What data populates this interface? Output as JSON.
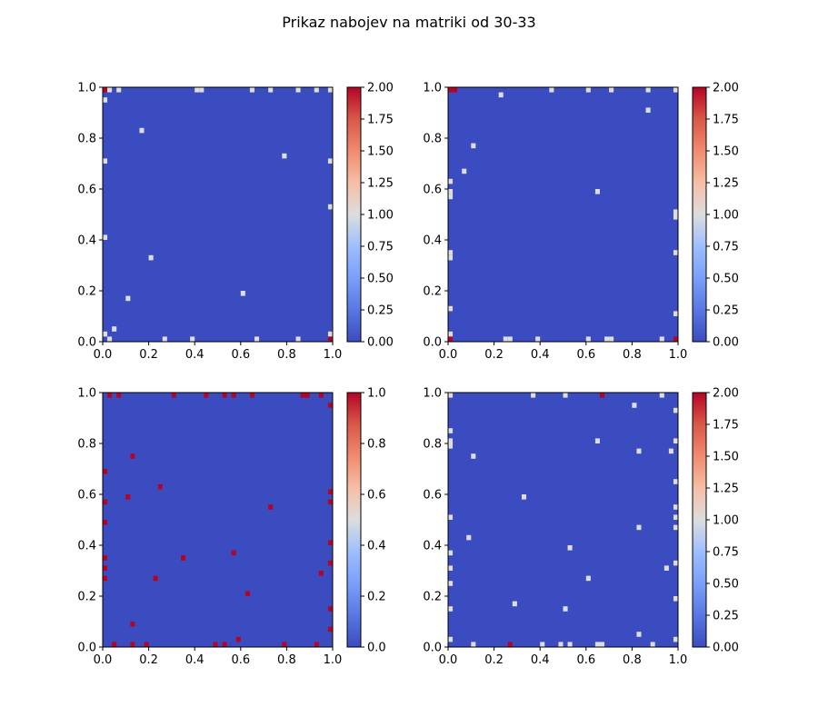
{
  "figure": {
    "title": "Prikaz nabojev na matriki od 30-33"
  },
  "chart_data": [
    {
      "type": "heatmap",
      "name": "panel-1",
      "grid_size": 50,
      "background_value": 0,
      "xlim": [
        0,
        1
      ],
      "ylim": [
        0,
        1
      ],
      "xticks": [
        "0.0",
        "0.2",
        "0.4",
        "0.6",
        "0.8",
        "1.0"
      ],
      "yticks": [
        "0.0",
        "0.2",
        "0.4",
        "0.6",
        "0.8",
        "1.0"
      ],
      "colorbar": {
        "min": 0,
        "max": 2,
        "ticks": [
          "0.00",
          "0.25",
          "0.50",
          "0.75",
          "1.00",
          "1.25",
          "1.50",
          "1.75",
          "2.00"
        ]
      },
      "cells": [
        {
          "x": 0.01,
          "y": 0.99,
          "v": 2
        },
        {
          "x": 0.03,
          "y": 0.99,
          "v": 1
        },
        {
          "x": 0.07,
          "y": 0.99,
          "v": 1
        },
        {
          "x": 0.41,
          "y": 0.99,
          "v": 1
        },
        {
          "x": 0.43,
          "y": 0.99,
          "v": 1
        },
        {
          "x": 0.65,
          "y": 0.99,
          "v": 1
        },
        {
          "x": 0.73,
          "y": 0.99,
          "v": 1
        },
        {
          "x": 0.85,
          "y": 0.99,
          "v": 1
        },
        {
          "x": 0.93,
          "y": 0.99,
          "v": 1
        },
        {
          "x": 0.99,
          "y": 0.99,
          "v": 1
        },
        {
          "x": 0.01,
          "y": 0.95,
          "v": 1
        },
        {
          "x": 0.17,
          "y": 0.83,
          "v": 1
        },
        {
          "x": 0.79,
          "y": 0.73,
          "v": 1
        },
        {
          "x": 0.01,
          "y": 0.71,
          "v": 1
        },
        {
          "x": 0.99,
          "y": 0.71,
          "v": 1
        },
        {
          "x": 0.99,
          "y": 0.53,
          "v": 1
        },
        {
          "x": 0.01,
          "y": 0.41,
          "v": 1
        },
        {
          "x": 0.21,
          "y": 0.33,
          "v": 1
        },
        {
          "x": 0.61,
          "y": 0.19,
          "v": 1
        },
        {
          "x": 0.11,
          "y": 0.17,
          "v": 1
        },
        {
          "x": 0.05,
          "y": 0.05,
          "v": 1
        },
        {
          "x": 0.01,
          "y": 0.03,
          "v": 1
        },
        {
          "x": 0.99,
          "y": 0.03,
          "v": 1
        },
        {
          "x": 0.03,
          "y": 0.01,
          "v": 1
        },
        {
          "x": 0.27,
          "y": 0.01,
          "v": 1
        },
        {
          "x": 0.39,
          "y": 0.01,
          "v": 1
        },
        {
          "x": 0.67,
          "y": 0.01,
          "v": 1
        },
        {
          "x": 0.85,
          "y": 0.01,
          "v": 1
        },
        {
          "x": 0.99,
          "y": 0.01,
          "v": 2
        }
      ]
    },
    {
      "type": "heatmap",
      "name": "panel-2",
      "grid_size": 50,
      "background_value": 0,
      "xlim": [
        0,
        1
      ],
      "ylim": [
        0,
        1
      ],
      "xticks": [
        "0.0",
        "0.2",
        "0.4",
        "0.6",
        "0.8",
        "1.0"
      ],
      "yticks": [
        "0.0",
        "0.2",
        "0.4",
        "0.6",
        "0.8",
        "1.0"
      ],
      "colorbar": {
        "min": 0,
        "max": 2,
        "ticks": [
          "0.00",
          "0.25",
          "0.50",
          "0.75",
          "1.00",
          "1.25",
          "1.50",
          "1.75",
          "2.00"
        ]
      },
      "cells": [
        {
          "x": 0.01,
          "y": 0.99,
          "v": 2
        },
        {
          "x": 0.03,
          "y": 0.99,
          "v": 2
        },
        {
          "x": 0.45,
          "y": 0.99,
          "v": 1
        },
        {
          "x": 0.61,
          "y": 0.99,
          "v": 1
        },
        {
          "x": 0.71,
          "y": 0.99,
          "v": 1
        },
        {
          "x": 0.87,
          "y": 0.99,
          "v": 1
        },
        {
          "x": 0.99,
          "y": 0.99,
          "v": 1
        },
        {
          "x": 0.23,
          "y": 0.97,
          "v": 1
        },
        {
          "x": 0.87,
          "y": 0.91,
          "v": 1
        },
        {
          "x": 0.11,
          "y": 0.77,
          "v": 1
        },
        {
          "x": 0.07,
          "y": 0.67,
          "v": 1
        },
        {
          "x": 0.01,
          "y": 0.63,
          "v": 1
        },
        {
          "x": 0.01,
          "y": 0.59,
          "v": 1
        },
        {
          "x": 0.65,
          "y": 0.59,
          "v": 1
        },
        {
          "x": 0.01,
          "y": 0.57,
          "v": 1
        },
        {
          "x": 0.99,
          "y": 0.51,
          "v": 1
        },
        {
          "x": 0.99,
          "y": 0.49,
          "v": 1
        },
        {
          "x": 0.01,
          "y": 0.35,
          "v": 1
        },
        {
          "x": 0.01,
          "y": 0.33,
          "v": 1
        },
        {
          "x": 0.99,
          "y": 0.35,
          "v": 1
        },
        {
          "x": 0.01,
          "y": 0.13,
          "v": 1
        },
        {
          "x": 0.99,
          "y": 0.11,
          "v": 1
        },
        {
          "x": 0.01,
          "y": 0.03,
          "v": 1
        },
        {
          "x": 0.01,
          "y": 0.01,
          "v": 2
        },
        {
          "x": 0.25,
          "y": 0.01,
          "v": 1
        },
        {
          "x": 0.27,
          "y": 0.01,
          "v": 1
        },
        {
          "x": 0.39,
          "y": 0.01,
          "v": 1
        },
        {
          "x": 0.61,
          "y": 0.01,
          "v": 1
        },
        {
          "x": 0.69,
          "y": 0.01,
          "v": 1
        },
        {
          "x": 0.71,
          "y": 0.01,
          "v": 1
        },
        {
          "x": 0.93,
          "y": 0.01,
          "v": 1
        },
        {
          "x": 0.99,
          "y": 0.01,
          "v": 2
        }
      ]
    },
    {
      "type": "heatmap",
      "name": "panel-3",
      "grid_size": 50,
      "background_value": 0,
      "xlim": [
        0,
        1
      ],
      "ylim": [
        0,
        1
      ],
      "xticks": [
        "0.0",
        "0.2",
        "0.4",
        "0.6",
        "0.8",
        "1.0"
      ],
      "yticks": [
        "0.0",
        "0.2",
        "0.4",
        "0.6",
        "0.8",
        "1.0"
      ],
      "colorbar": {
        "min": 0,
        "max": 1,
        "ticks": [
          "0.0",
          "0.2",
          "0.4",
          "0.6",
          "0.8",
          "1.0"
        ]
      },
      "cells": [
        {
          "x": 0.03,
          "y": 0.99,
          "v": 1
        },
        {
          "x": 0.07,
          "y": 0.99,
          "v": 1
        },
        {
          "x": 0.31,
          "y": 0.99,
          "v": 1
        },
        {
          "x": 0.45,
          "y": 0.99,
          "v": 1
        },
        {
          "x": 0.53,
          "y": 0.99,
          "v": 1
        },
        {
          "x": 0.57,
          "y": 0.99,
          "v": 1
        },
        {
          "x": 0.65,
          "y": 0.99,
          "v": 1
        },
        {
          "x": 0.87,
          "y": 0.99,
          "v": 1
        },
        {
          "x": 0.89,
          "y": 0.99,
          "v": 1
        },
        {
          "x": 0.95,
          "y": 0.99,
          "v": 1
        },
        {
          "x": 0.99,
          "y": 0.95,
          "v": 1
        },
        {
          "x": 0.13,
          "y": 0.75,
          "v": 1
        },
        {
          "x": 0.01,
          "y": 0.69,
          "v": 1
        },
        {
          "x": 0.25,
          "y": 0.63,
          "v": 1
        },
        {
          "x": 0.99,
          "y": 0.61,
          "v": 1
        },
        {
          "x": 0.11,
          "y": 0.59,
          "v": 1
        },
        {
          "x": 0.01,
          "y": 0.57,
          "v": 1
        },
        {
          "x": 0.99,
          "y": 0.57,
          "v": 1
        },
        {
          "x": 0.73,
          "y": 0.55,
          "v": 1
        },
        {
          "x": 0.01,
          "y": 0.49,
          "v": 1
        },
        {
          "x": 0.99,
          "y": 0.41,
          "v": 1
        },
        {
          "x": 0.57,
          "y": 0.37,
          "v": 1
        },
        {
          "x": 0.01,
          "y": 0.35,
          "v": 1
        },
        {
          "x": 0.35,
          "y": 0.35,
          "v": 1
        },
        {
          "x": 0.99,
          "y": 0.33,
          "v": 1
        },
        {
          "x": 0.01,
          "y": 0.31,
          "v": 1
        },
        {
          "x": 0.95,
          "y": 0.29,
          "v": 1
        },
        {
          "x": 0.01,
          "y": 0.27,
          "v": 1
        },
        {
          "x": 0.23,
          "y": 0.27,
          "v": 1
        },
        {
          "x": 0.63,
          "y": 0.21,
          "v": 1
        },
        {
          "x": 0.99,
          "y": 0.15,
          "v": 1
        },
        {
          "x": 0.13,
          "y": 0.09,
          "v": 1
        },
        {
          "x": 0.99,
          "y": 0.07,
          "v": 1
        },
        {
          "x": 0.59,
          "y": 0.03,
          "v": 1
        },
        {
          "x": 0.05,
          "y": 0.01,
          "v": 1
        },
        {
          "x": 0.13,
          "y": 0.01,
          "v": 1
        },
        {
          "x": 0.19,
          "y": 0.01,
          "v": 1
        },
        {
          "x": 0.49,
          "y": 0.01,
          "v": 1
        },
        {
          "x": 0.53,
          "y": 0.01,
          "v": 1
        },
        {
          "x": 0.79,
          "y": 0.01,
          "v": 1
        },
        {
          "x": 0.93,
          "y": 0.01,
          "v": 1
        }
      ]
    },
    {
      "type": "heatmap",
      "name": "panel-4",
      "grid_size": 50,
      "background_value": 0,
      "xlim": [
        0,
        1
      ],
      "ylim": [
        0,
        1
      ],
      "xticks": [
        "0.0",
        "0.2",
        "0.4",
        "0.6",
        "0.8",
        "1.0"
      ],
      "yticks": [
        "0.0",
        "0.2",
        "0.4",
        "0.6",
        "0.8",
        "1.0"
      ],
      "colorbar": {
        "min": 0,
        "max": 2,
        "ticks": [
          "0.00",
          "0.25",
          "0.50",
          "0.75",
          "1.00",
          "1.25",
          "1.50",
          "1.75",
          "2.00"
        ]
      },
      "cells": [
        {
          "x": 0.01,
          "y": 0.99,
          "v": 1
        },
        {
          "x": 0.37,
          "y": 0.99,
          "v": 1
        },
        {
          "x": 0.51,
          "y": 0.99,
          "v": 1
        },
        {
          "x": 0.67,
          "y": 0.99,
          "v": 2
        },
        {
          "x": 0.93,
          "y": 0.99,
          "v": 1
        },
        {
          "x": 0.81,
          "y": 0.95,
          "v": 1
        },
        {
          "x": 0.99,
          "y": 0.93,
          "v": 1
        },
        {
          "x": 0.01,
          "y": 0.85,
          "v": 1
        },
        {
          "x": 0.01,
          "y": 0.81,
          "v": 1
        },
        {
          "x": 0.65,
          "y": 0.81,
          "v": 1
        },
        {
          "x": 0.99,
          "y": 0.81,
          "v": 1
        },
        {
          "x": 0.01,
          "y": 0.79,
          "v": 1
        },
        {
          "x": 0.83,
          "y": 0.77,
          "v": 1
        },
        {
          "x": 0.97,
          "y": 0.77,
          "v": 1
        },
        {
          "x": 0.11,
          "y": 0.75,
          "v": 1
        },
        {
          "x": 0.99,
          "y": 0.65,
          "v": 1
        },
        {
          "x": 0.33,
          "y": 0.59,
          "v": 1
        },
        {
          "x": 0.99,
          "y": 0.55,
          "v": 1
        },
        {
          "x": 0.01,
          "y": 0.51,
          "v": 1
        },
        {
          "x": 0.99,
          "y": 0.51,
          "v": 1
        },
        {
          "x": 0.83,
          "y": 0.47,
          "v": 1
        },
        {
          "x": 0.99,
          "y": 0.47,
          "v": 1
        },
        {
          "x": 0.09,
          "y": 0.43,
          "v": 1
        },
        {
          "x": 0.53,
          "y": 0.39,
          "v": 1
        },
        {
          "x": 0.01,
          "y": 0.37,
          "v": 1
        },
        {
          "x": 0.99,
          "y": 0.33,
          "v": 1
        },
        {
          "x": 0.01,
          "y": 0.31,
          "v": 1
        },
        {
          "x": 0.95,
          "y": 0.31,
          "v": 1
        },
        {
          "x": 0.61,
          "y": 0.27,
          "v": 1
        },
        {
          "x": 0.01,
          "y": 0.25,
          "v": 1
        },
        {
          "x": 0.99,
          "y": 0.19,
          "v": 1
        },
        {
          "x": 0.29,
          "y": 0.17,
          "v": 1
        },
        {
          "x": 0.01,
          "y": 0.15,
          "v": 1
        },
        {
          "x": 0.51,
          "y": 0.15,
          "v": 1
        },
        {
          "x": 0.83,
          "y": 0.05,
          "v": 1
        },
        {
          "x": 0.01,
          "y": 0.03,
          "v": 1
        },
        {
          "x": 0.99,
          "y": 0.03,
          "v": 1
        },
        {
          "x": 0.11,
          "y": 0.01,
          "v": 1
        },
        {
          "x": 0.27,
          "y": 0.01,
          "v": 2
        },
        {
          "x": 0.41,
          "y": 0.01,
          "v": 1
        },
        {
          "x": 0.49,
          "y": 0.01,
          "v": 1
        },
        {
          "x": 0.53,
          "y": 0.01,
          "v": 1
        },
        {
          "x": 0.65,
          "y": 0.01,
          "v": 1
        },
        {
          "x": 0.67,
          "y": 0.01,
          "v": 1
        },
        {
          "x": 0.89,
          "y": 0.01,
          "v": 1
        }
      ]
    }
  ]
}
